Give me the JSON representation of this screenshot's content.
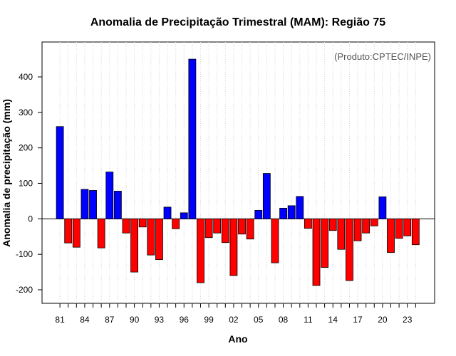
{
  "chart_data": {
    "type": "bar",
    "title": "Anomalia de Precipitação Trimestral (MAM): Região 75",
    "xlabel": "Ano",
    "ylabel": "Anomalia de precipitação (mm)",
    "annotation": "(Produto:CPTEC/INPE)",
    "ylim": [
      -240,
      500
    ],
    "yticks": [
      -200,
      -100,
      0,
      100,
      200,
      300,
      400
    ],
    "grid": "vertical dotted",
    "colors": {
      "positive": "#0000ff",
      "negative": "#ff0000",
      "edge": "#000000"
    },
    "categories": [
      "1981",
      "1982",
      "1983",
      "1984",
      "1985",
      "1986",
      "1987",
      "1988",
      "1989",
      "1990",
      "1991",
      "1992",
      "1993",
      "1994",
      "1995",
      "1996",
      "1997",
      "1998",
      "1999",
      "2000",
      "2001",
      "2002",
      "2003",
      "2004",
      "2005",
      "2006",
      "2007",
      "2008",
      "2009",
      "2010",
      "2011",
      "2012",
      "2013",
      "2014",
      "2015",
      "2016",
      "2017",
      "2018",
      "2019",
      "2020",
      "2021",
      "2022",
      "2023",
      "2024"
    ],
    "tick_labels": [
      "81",
      "84",
      "87",
      "90",
      "93",
      "96",
      "99",
      "02",
      "05",
      "08",
      "11",
      "14",
      "17",
      "20",
      "23"
    ],
    "values": [
      260,
      -68,
      -80,
      83,
      80,
      -82,
      132,
      78,
      -40,
      -150,
      -23,
      -102,
      -115,
      33,
      -28,
      17,
      450,
      -180,
      -53,
      -40,
      -67,
      -160,
      -43,
      -57,
      24,
      128,
      -124,
      30,
      37,
      63,
      -27,
      -188,
      -137,
      -33,
      -86,
      -174,
      -62,
      -40,
      -20,
      62,
      -95,
      -55,
      -48,
      -73
    ]
  }
}
